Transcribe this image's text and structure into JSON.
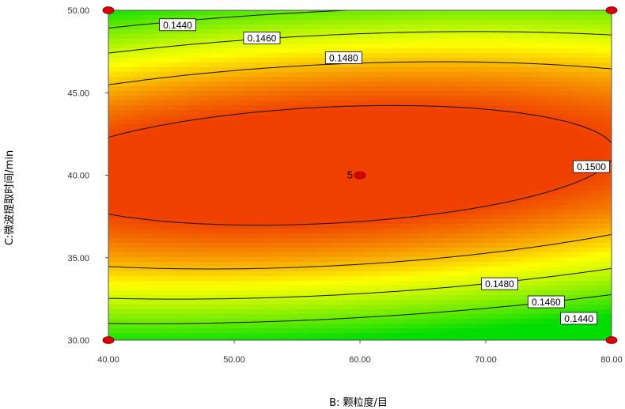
{
  "chart_data": {
    "type": "contour",
    "xlabel": "B: 颗粒度/目",
    "ylabel": "C:微波提取时间/min",
    "xlim": [
      40,
      80
    ],
    "ylim": [
      30,
      50
    ],
    "x_ticks": [
      "40.00",
      "50.00",
      "60.00",
      "70.00",
      "80.00"
    ],
    "y_ticks": [
      "30.00",
      "35.00",
      "40.00",
      "45.00",
      "50.00"
    ],
    "contour_levels": [
      {
        "value": 0.144,
        "label": "0.1440"
      },
      {
        "value": 0.146,
        "label": "0.1460"
      },
      {
        "value": 0.148,
        "label": "0.1480"
      },
      {
        "value": 0.15,
        "label": "0.1500"
      }
    ],
    "design_points": [
      {
        "x": 40,
        "y": 30
      },
      {
        "x": 40,
        "y": 50
      },
      {
        "x": 80,
        "y": 30
      },
      {
        "x": 80,
        "y": 50
      },
      {
        "x": 60,
        "y": 40,
        "count": "5"
      }
    ],
    "colors": {
      "high": "#f04000",
      "mid": "#ffff00",
      "low": "#00dd00",
      "point_fill": "#dd0000"
    }
  }
}
